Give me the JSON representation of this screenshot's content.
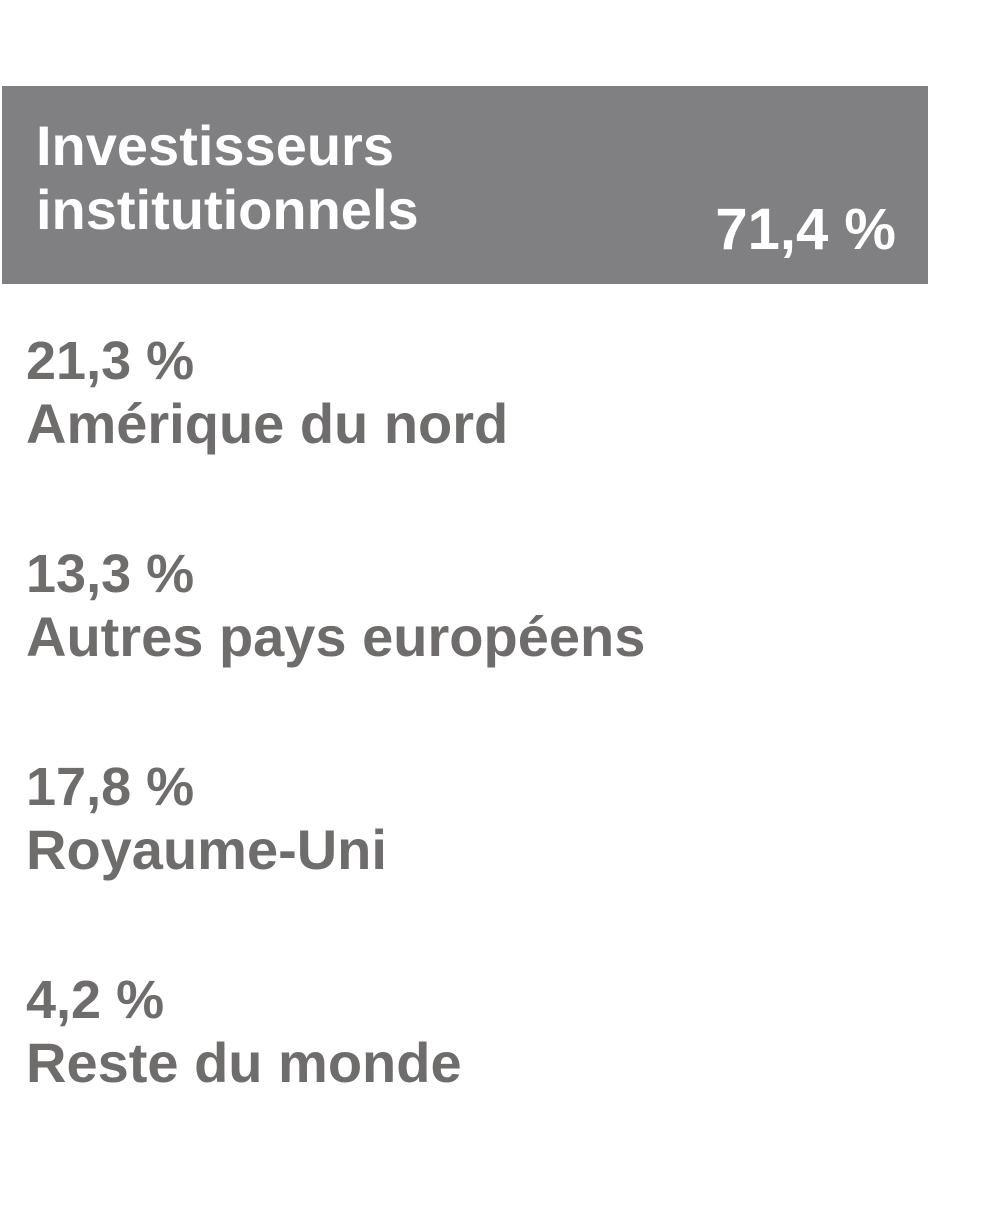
{
  "colors": {
    "header_bg": "#808082",
    "header_text": "#ffffff",
    "item_text": "#6f6c6c"
  },
  "header": {
    "label": "Investisseurs institutionnels",
    "value": "71,4 %"
  },
  "chart_data": {
    "type": "table",
    "title": "Investisseurs institutionnels",
    "total": {
      "label": "Investisseurs institutionnels",
      "value": 71.4,
      "display": "71,4 %"
    },
    "categories": [
      "Amérique du nord",
      "Autres pays européens",
      "Royaume-Uni",
      "Reste du monde"
    ],
    "values": [
      21.3,
      13.3,
      17.8,
      4.2
    ],
    "items": [
      {
        "value": "21,3 %",
        "label": "Amérique du nord"
      },
      {
        "value": "13,3 %",
        "label": "Autres pays européens"
      },
      {
        "value": "17,8 %",
        "label": "Royaume-Uni"
      },
      {
        "value": "4,2 %",
        "label": "Reste du monde"
      }
    ]
  }
}
